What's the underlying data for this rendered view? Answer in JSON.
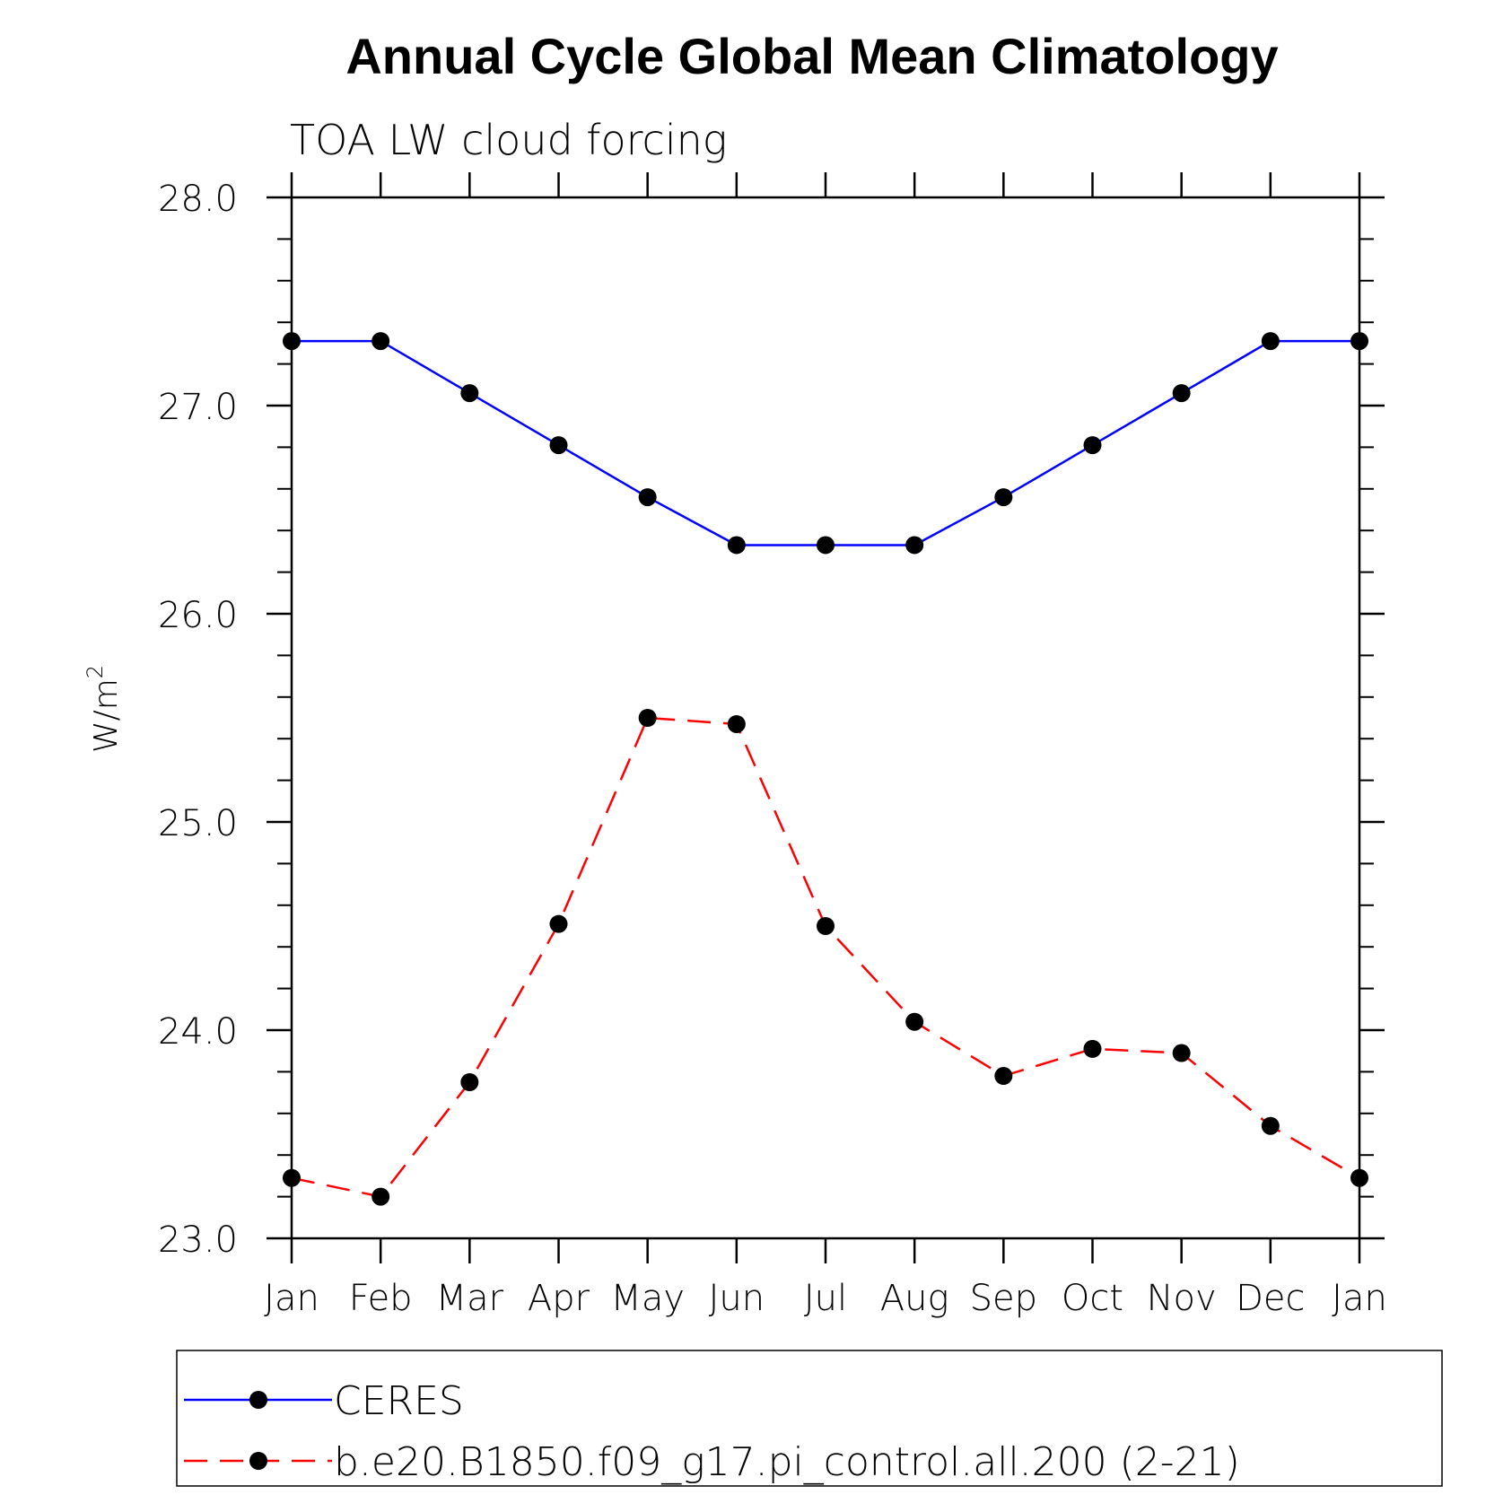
{
  "chart_data": {
    "type": "line",
    "title": "Annual Cycle Global Mean Climatology",
    "subtitle": "TOA LW cloud forcing",
    "ylabel": "W/m",
    "ylabel_sup": "2",
    "xlabel": "",
    "categories": [
      "Jan",
      "Feb",
      "Mar",
      "Apr",
      "May",
      "Jun",
      "Jul",
      "Aug",
      "Sep",
      "Oct",
      "Nov",
      "Dec",
      "Jan"
    ],
    "ylim": [
      23.0,
      28.0
    ],
    "y_ticks": [
      "23.0",
      "24.0",
      "25.0",
      "26.0",
      "27.0",
      "28.0"
    ],
    "y_tick_values": [
      23.0,
      24.0,
      25.0,
      26.0,
      27.0,
      28.0
    ],
    "grid": false,
    "legend_position": "bottom",
    "series": [
      {
        "name": "CERES",
        "color": "#0000ff",
        "style": "solid",
        "marker": "filled-circle",
        "values": [
          27.31,
          27.31,
          27.06,
          26.81,
          26.56,
          26.33,
          26.33,
          26.33,
          26.56,
          26.81,
          27.06,
          27.31,
          27.31
        ]
      },
      {
        "name": "b.e20.B1850.f09_g17.pi_control.all.200 (2-21)",
        "color": "#ff0000",
        "style": "dashed",
        "marker": "filled-circle",
        "values": [
          23.29,
          23.2,
          23.75,
          24.51,
          25.5,
          25.47,
          24.5,
          24.04,
          23.78,
          23.91,
          23.89,
          23.54,
          23.29
        ]
      }
    ]
  }
}
